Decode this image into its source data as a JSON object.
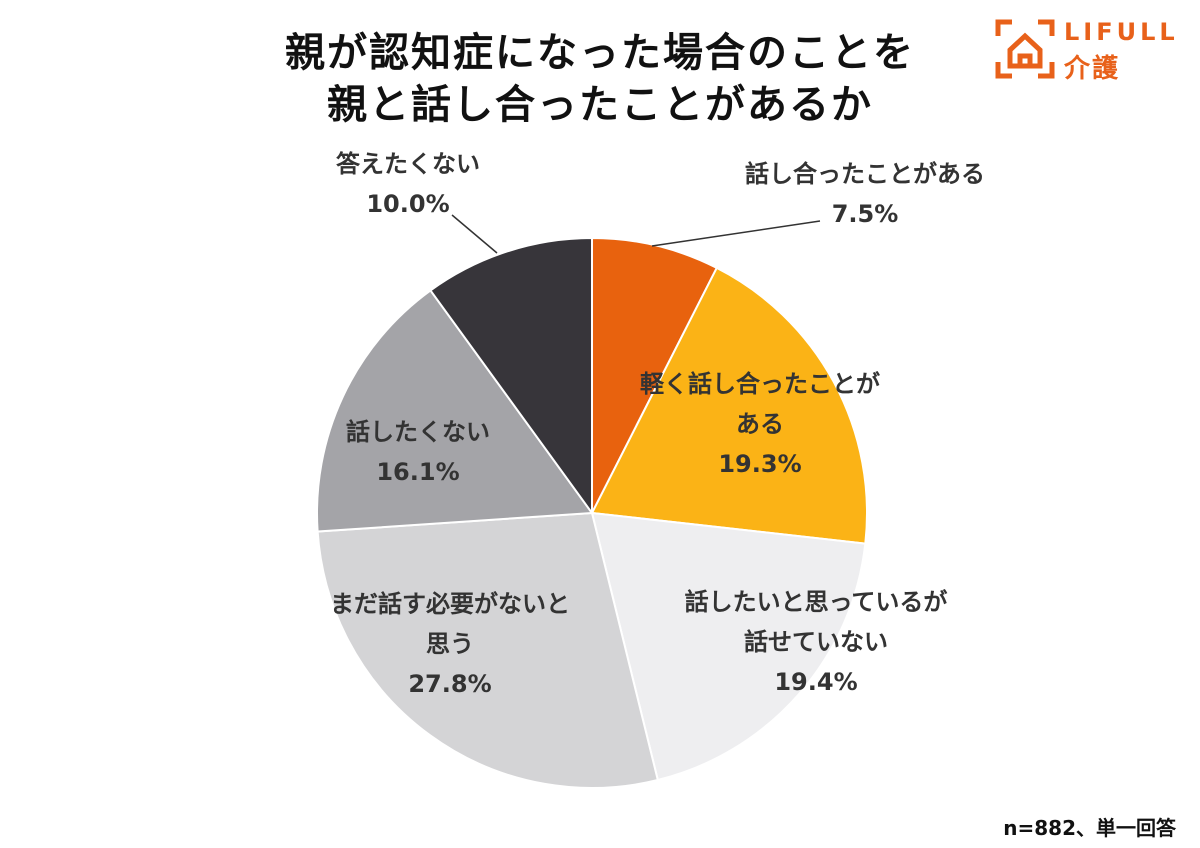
{
  "title": {
    "line1": "親が認知症になった場合のことを",
    "line2": "親と話し合ったことがあるか"
  },
  "logo": {
    "brand": "LIFULL",
    "sub": "介護",
    "color": "#e8611a"
  },
  "footnote": "n=882、単一回答",
  "chart_data": {
    "type": "pie",
    "start_angle_deg": 0,
    "direction": "clockwise",
    "slices": [
      {
        "label_lines": [
          "話し合ったことがある"
        ],
        "value_text": "7.5%",
        "value": 7.5,
        "color": "#e8620e"
      },
      {
        "label_lines": [
          "軽く話し合ったことが",
          "ある"
        ],
        "value_text": "19.3%",
        "value": 19.3,
        "color": "#fbb316"
      },
      {
        "label_lines": [
          "話したいと思っているが",
          "話せていない"
        ],
        "value_text": "19.4%",
        "value": 19.4,
        "color": "#eeeef0"
      },
      {
        "label_lines": [
          "まだ話す必要がないと",
          "思う"
        ],
        "value_text": "27.8%",
        "value": 27.8,
        "color": "#d4d4d6"
      },
      {
        "label_lines": [
          "話したくない"
        ],
        "value_text": "16.1%",
        "value": 16.1,
        "color": "#a4a4a8"
      },
      {
        "label_lines": [
          "答えたくない"
        ],
        "value_text": "10.0%",
        "value": 10.0,
        "color": "#37353a"
      }
    ]
  }
}
